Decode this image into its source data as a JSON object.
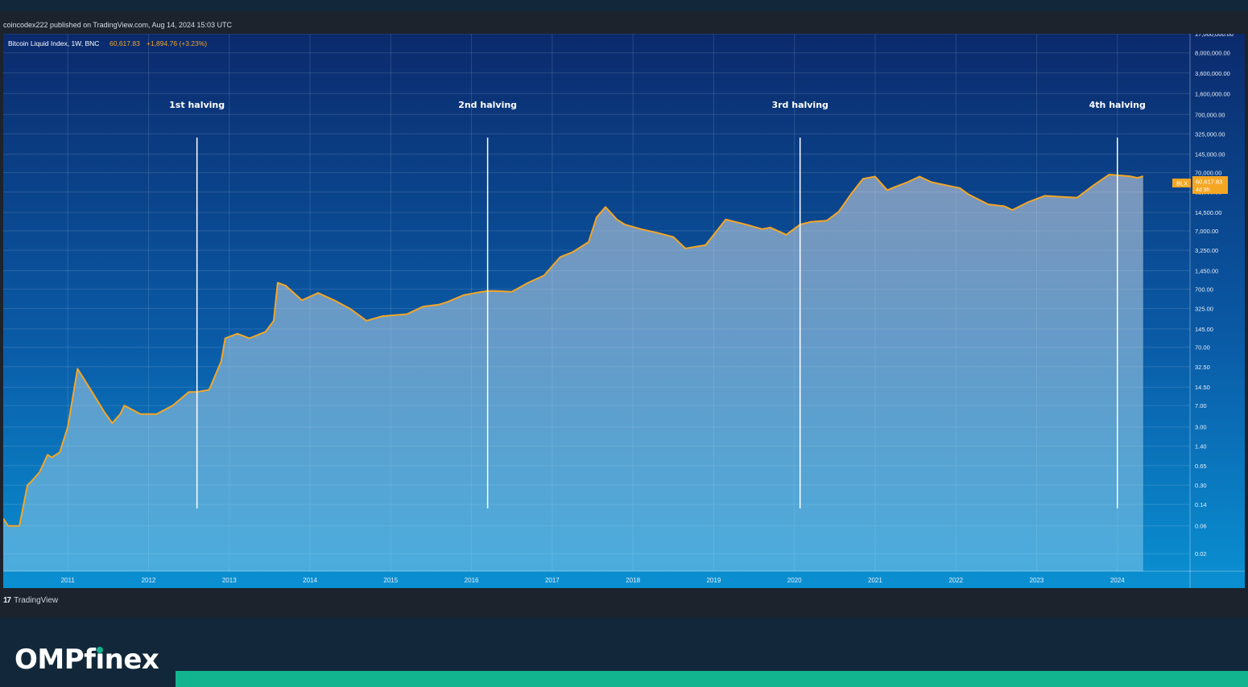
{
  "header": {
    "publisher_line": "coincodex222 published on TradingView.com, Aug 14, 2024 15:03 UTC"
  },
  "legend": {
    "symbol": "Bitcoin Liquid Index, 1W, BNC",
    "price": "60,617.83",
    "change": "+1,894.76 (+3.23%)"
  },
  "price_tag": {
    "ticker": "BLX",
    "price": "60,617.83",
    "countdown": "4d 9h"
  },
  "footer": {
    "tradingview_label": "TradingView"
  },
  "brand": {
    "prefix": "OMPf",
    "i_letter": "ı",
    "suffix": "nex"
  },
  "colors": {
    "line": "#f5a623",
    "background_top": "#0a2a6e",
    "background_bottom": "#0a8fd0",
    "halving_line": "#ffffff",
    "brand_accent": "#12b48f"
  },
  "chart_data": {
    "type": "area",
    "title": "",
    "xlabel": "",
    "ylabel": "",
    "y_scale": "log",
    "ylim": [
      0.01,
      17000000
    ],
    "xlim": [
      2010.5,
      2025.2
    ],
    "grid": true,
    "x_ticks": [
      "2011",
      "2012",
      "2013",
      "2014",
      "2015",
      "2016",
      "2017",
      "2018",
      "2019",
      "2020",
      "2021",
      "2022",
      "2023",
      "2024"
    ],
    "y_ticks": [
      {
        "value": 17000000,
        "label": "17,000,000.00"
      },
      {
        "value": 8000000,
        "label": "8,000,000.00"
      },
      {
        "value": 3600000,
        "label": "3,600,000.00"
      },
      {
        "value": 1600000,
        "label": "1,600,000.00"
      },
      {
        "value": 700000,
        "label": "700,000.00"
      },
      {
        "value": 325000,
        "label": "325,000.00"
      },
      {
        "value": 145000,
        "label": "145,000.00"
      },
      {
        "value": 70000,
        "label": "70,000.00"
      },
      {
        "value": 32500,
        "label": "32,500.00"
      },
      {
        "value": 14500,
        "label": "14,500.00"
      },
      {
        "value": 7000,
        "label": "7,000.00"
      },
      {
        "value": 3250,
        "label": "3,250.00"
      },
      {
        "value": 1450,
        "label": "1,450.00"
      },
      {
        "value": 700,
        "label": "700.00"
      },
      {
        "value": 325,
        "label": "325.00"
      },
      {
        "value": 145,
        "label": "145.00"
      },
      {
        "value": 70,
        "label": "70.00"
      },
      {
        "value": 32.5,
        "label": "32.50"
      },
      {
        "value": 14.5,
        "label": "14.50"
      },
      {
        "value": 7,
        "label": "7.00"
      },
      {
        "value": 3,
        "label": "3.00"
      },
      {
        "value": 1.4,
        "label": "1.40"
      },
      {
        "value": 0.65,
        "label": "0.65"
      },
      {
        "value": 0.3,
        "label": "0.30"
      },
      {
        "value": 0.14,
        "label": "0.14"
      },
      {
        "value": 0.06,
        "label": "0.06"
      },
      {
        "value": 0.02,
        "label": "0.02"
      }
    ],
    "annotations": [
      {
        "label": "1st halving",
        "x": 2012.9
      },
      {
        "label": "2nd halving",
        "x": 2016.5
      },
      {
        "label": "3rd halving",
        "x": 2020.37
      },
      {
        "label": "4th halving",
        "x": 2024.3
      }
    ],
    "series": [
      {
        "x": [
          2010.5,
          2010.56,
          2010.7,
          2010.8,
          2010.85,
          2010.95,
          2011.05,
          2011.1,
          2011.2,
          2011.3,
          2011.42,
          2011.5,
          2011.6,
          2011.75,
          2011.85,
          2011.95,
          2012.0,
          2012.2,
          2012.4,
          2012.6,
          2012.8,
          2012.9,
          2013.05,
          2013.2,
          2013.25,
          2013.4,
          2013.55,
          2013.75,
          2013.85,
          2013.9,
          2014.0,
          2014.2,
          2014.4,
          2014.6,
          2014.8,
          2015.0,
          2015.2,
          2015.5,
          2015.7,
          2015.9,
          2016.0,
          2016.2,
          2016.4,
          2016.5,
          2016.6,
          2016.8,
          2017.0,
          2017.2,
          2017.4,
          2017.55,
          2017.75,
          2017.85,
          2017.96,
          2018.1,
          2018.2,
          2018.4,
          2018.6,
          2018.8,
          2018.95,
          2019.2,
          2019.45,
          2019.7,
          2019.9,
          2020.0,
          2020.2,
          2020.37,
          2020.5,
          2020.7,
          2020.85,
          2021.0,
          2021.15,
          2021.3,
          2021.45,
          2021.55,
          2021.7,
          2021.85,
          2022.0,
          2022.2,
          2022.35,
          2022.45,
          2022.7,
          2022.9,
          2023.0,
          2023.2,
          2023.4,
          2023.6,
          2023.8,
          2024.0,
          2024.2,
          2024.3,
          2024.45,
          2024.55,
          2024.62
        ],
        "y": [
          0.08,
          0.06,
          0.06,
          0.3,
          0.35,
          0.5,
          1.0,
          0.9,
          1.1,
          3.0,
          30,
          20,
          12,
          5.5,
          3.5,
          5.0,
          7.0,
          5.0,
          5.0,
          7.0,
          12,
          12,
          13,
          40,
          100,
          120,
          100,
          130,
          200,
          900,
          800,
          450,
          600,
          450,
          320,
          200,
          240,
          260,
          350,
          380,
          420,
          550,
          620,
          650,
          650,
          630,
          900,
          1200,
          2500,
          3000,
          4500,
          12000,
          18000,
          11000,
          9000,
          7500,
          6500,
          5500,
          3500,
          4000,
          11000,
          9000,
          7500,
          8000,
          6000,
          9000,
          10000,
          10500,
          15000,
          30000,
          55000,
          60000,
          35000,
          40000,
          48000,
          60000,
          48000,
          42000,
          38000,
          30000,
          20000,
          18500,
          16000,
          22000,
          28000,
          27000,
          26000,
          42000,
          65000,
          63000,
          61000,
          57000,
          60617.83
        ]
      }
    ]
  }
}
